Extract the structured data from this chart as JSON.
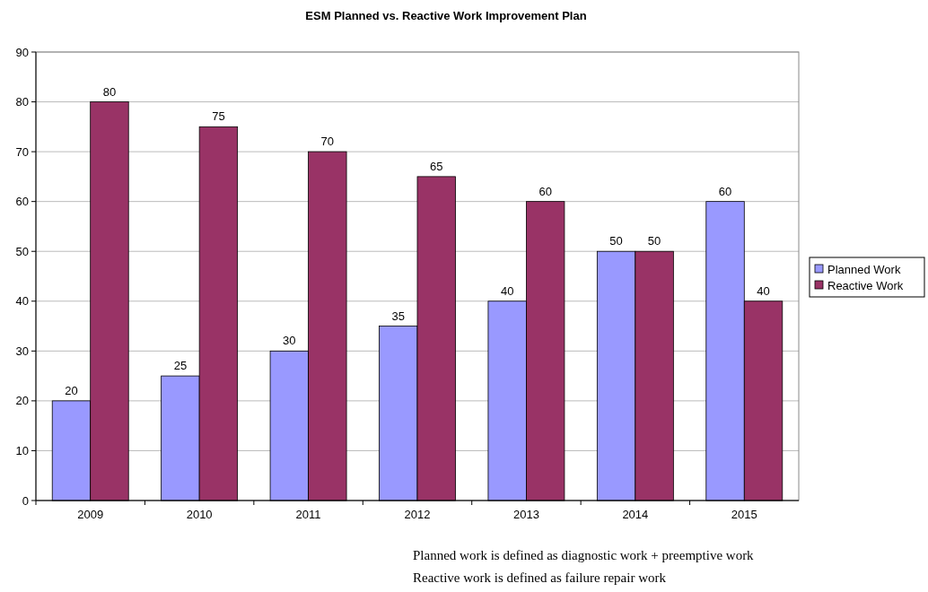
{
  "chart_data": {
    "type": "bar",
    "title": "ESM Planned vs. Reactive Work Improvement Plan",
    "categories": [
      "2009",
      "2010",
      "2011",
      "2012",
      "2013",
      "2014",
      "2015"
    ],
    "series": [
      {
        "name": "Planned Work",
        "color": "#9999ff",
        "values": [
          20,
          25,
          30,
          35,
          40,
          50,
          60
        ]
      },
      {
        "name": "Reactive Work",
        "color": "#993366",
        "values": [
          80,
          75,
          70,
          65,
          60,
          50,
          40
        ]
      }
    ],
    "ylim": [
      0,
      90
    ],
    "yticks": [
      0,
      10,
      20,
      30,
      40,
      50,
      60,
      70,
      80,
      90
    ],
    "grid": "y",
    "legend": "right",
    "data_labels": true,
    "annotations": [
      "Planned work is defined as diagnostic work + preemptive work",
      "Reactive work is defined as failure repair work"
    ]
  }
}
